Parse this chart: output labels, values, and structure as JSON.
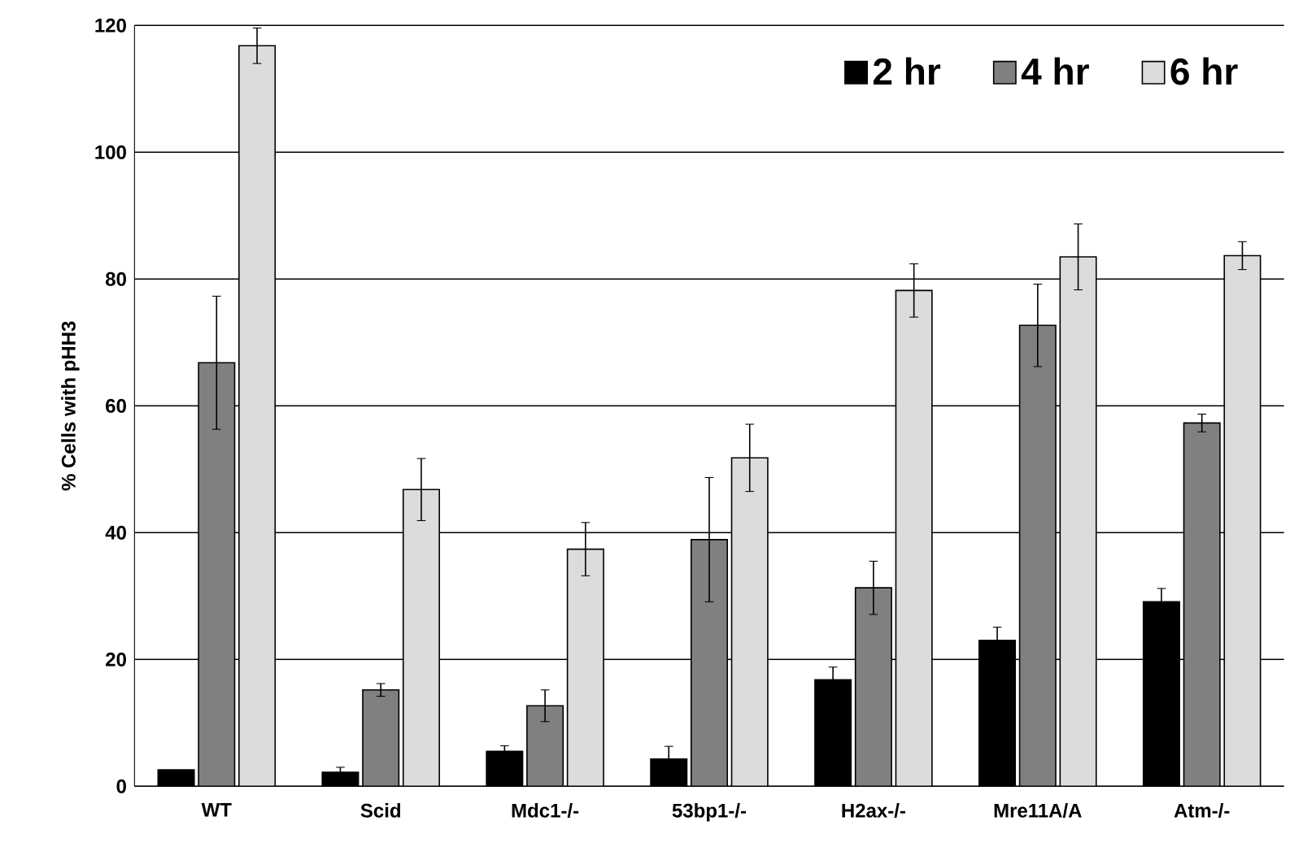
{
  "chart_data": {
    "type": "bar",
    "ylabel": "% Cells with pHH3",
    "categories": [
      "WT",
      "Scid",
      "Mdc1-/-",
      "53bp1-/-",
      "H2ax-/-",
      "Mre11A/A",
      "Atm-/-"
    ],
    "series": [
      {
        "name": "2 hr",
        "color": "#000000",
        "values": [
          2.6,
          2.2,
          5.5,
          4.3,
          16.8,
          23.0,
          29.1
        ],
        "errors": [
          null,
          0.8,
          0.9,
          2,
          2,
          2.1,
          2.1
        ]
      },
      {
        "name": "4 hr",
        "color": "#808080",
        "values": [
          66.8,
          15.2,
          12.7,
          38.9,
          31.3,
          72.7,
          57.3
        ],
        "errors": [
          10.5,
          1,
          2.5,
          9.8,
          4.2,
          6.5,
          1.4
        ]
      },
      {
        "name": "6 hr",
        "color": "#dcdcdc",
        "values": [
          116.8,
          46.8,
          37.4,
          51.8,
          78.2,
          83.5,
          83.7
        ],
        "errors": [
          2.8,
          4.9,
          4.2,
          5.3,
          4.2,
          5.2,
          2.2
        ]
      }
    ],
    "ylim": [
      0,
      120
    ],
    "yticks": [
      0,
      20,
      40,
      60,
      80,
      100,
      120
    ],
    "grid": "y",
    "legend": "top right"
  }
}
